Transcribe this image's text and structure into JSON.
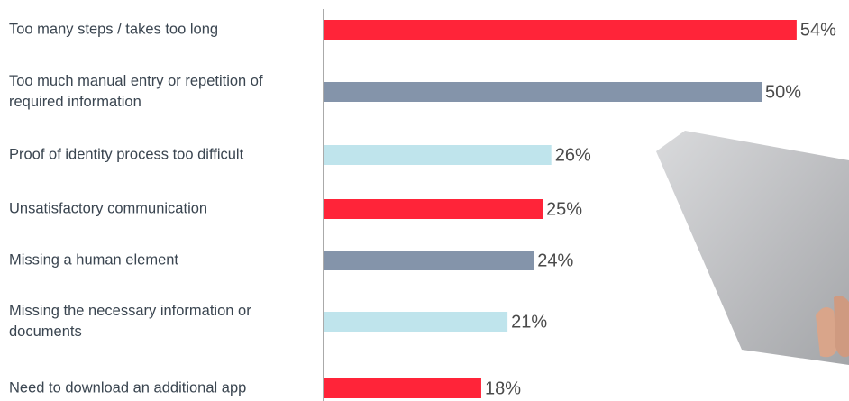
{
  "chart_data": {
    "type": "bar",
    "orientation": "horizontal",
    "categories": [
      "Too many steps / takes too long",
      "Too much manual entry or repetition of required information",
      "Proof of identity process too difficult",
      "Unsatisfactory communication",
      "Missing a human element",
      "Missing the necessary information or documents",
      "Need to download an additional app"
    ],
    "values": [
      54,
      50,
      26,
      25,
      24,
      21,
      18
    ],
    "value_labels": [
      "54%",
      "50%",
      "26%",
      "25%",
      "24%",
      "21%",
      "18%"
    ],
    "colors": [
      "#ff2439",
      "#8494aa",
      "#bfe4ec",
      "#ff2439",
      "#8494aa",
      "#bfe4ec",
      "#ff2439"
    ]
  }
}
